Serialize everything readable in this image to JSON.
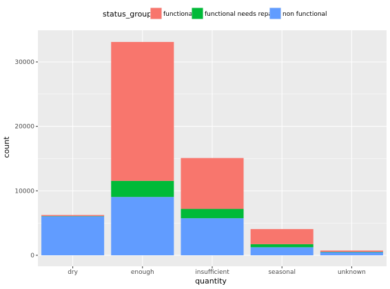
{
  "chart_data": {
    "type": "bar",
    "stacked": true,
    "categories": [
      "dry",
      "enough",
      "insufficient",
      "seasonal",
      "unknown"
    ],
    "series": [
      {
        "name": "non functional",
        "color": "#619CFF",
        "values": [
          6050,
          9050,
          5750,
          1250,
          480
        ]
      },
      {
        "name": "functional needs repair",
        "color": "#00BA38",
        "values": [
          40,
          2500,
          1450,
          470,
          50
        ]
      },
      {
        "name": "functional",
        "color": "#F8766D",
        "values": [
          160,
          21550,
          7890,
          2350,
          210
        ]
      }
    ],
    "xlabel": "quantity",
    "ylabel": "count",
    "ylim": [
      0,
      34500
    ],
    "yticks": [
      0,
      10000,
      20000,
      30000
    ],
    "grid": true,
    "legend": {
      "title": "status_group",
      "position": "top",
      "order": [
        "functional",
        "functional needs repair",
        "non functional"
      ]
    }
  }
}
